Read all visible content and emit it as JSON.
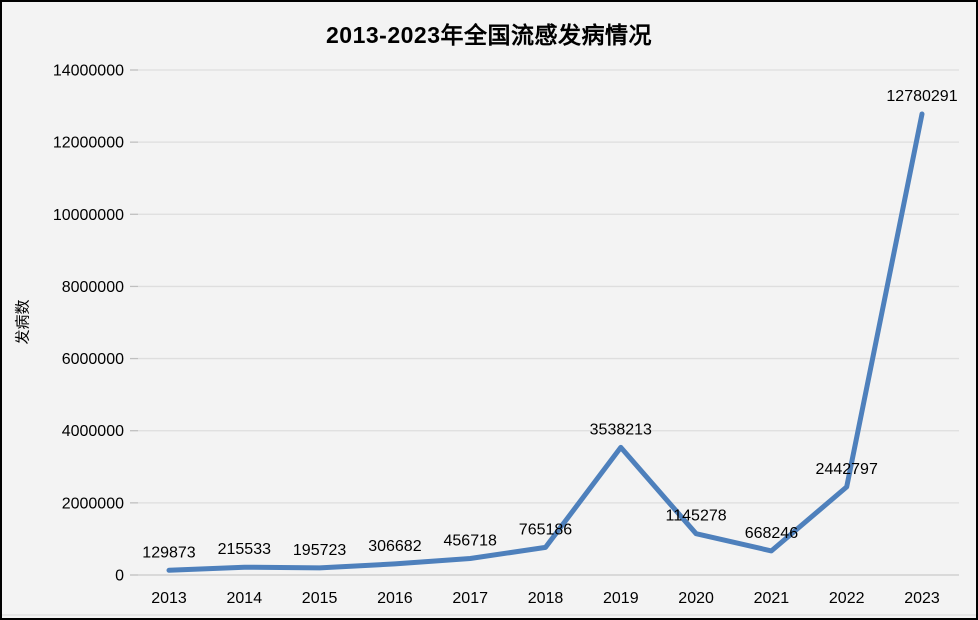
{
  "chart_data": {
    "type": "line",
    "title": "2013-2023年全国流感发病情况",
    "xlabel": "",
    "ylabel": "发病数",
    "categories": [
      "2013",
      "2014",
      "2015",
      "2016",
      "2017",
      "2018",
      "2019",
      "2020",
      "2021",
      "2022",
      "2023"
    ],
    "series": [
      {
        "name": "发病数",
        "values": [
          129873,
          215533,
          195723,
          306682,
          456718,
          765186,
          3538213,
          1145278,
          668246,
          2442797,
          12780291
        ]
      }
    ],
    "data_labels_visible": true,
    "ylim": [
      0,
      14000000
    ],
    "ytick_step": 2000000,
    "ytick_labels": [
      "0",
      "2000000",
      "4000000",
      "6000000",
      "8000000",
      "10000000",
      "12000000",
      "14000000"
    ],
    "grid": "horizontal",
    "legend": "none",
    "colors": {
      "line": "#4E80BC",
      "background": "#F3F3F3",
      "gridline": "#DEDEDE",
      "axis_line": "#C9C9C9",
      "tick_mark": "#BFBFBF",
      "text": "#000000",
      "title_text": "#000000",
      "border": "#000000"
    }
  }
}
